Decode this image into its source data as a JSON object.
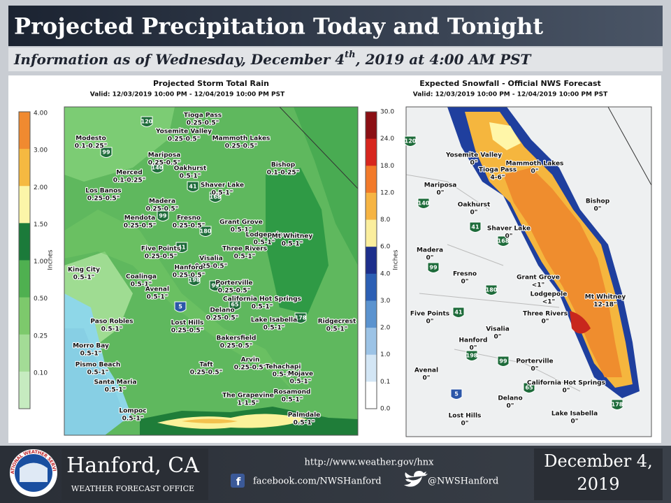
{
  "header": {
    "title": "Projected Precipitation Today and Tonight",
    "subtitle": {
      "before": "Information as of Wednesday, December 4",
      "sup": "th",
      "after": ", 2019 at 4:00 AM PST"
    }
  },
  "rain_map": {
    "title": "Projected Storm Total Rain",
    "valid": "Valid: 12/03/2019 10:00 PM - 12/04/2019 10:00 PM PST",
    "legend": {
      "label": "Inches",
      "ticks": [
        "4.00",
        "3.00",
        "2.00",
        "1.50",
        "1.00",
        "0.50",
        "0.25",
        "0.10"
      ]
    },
    "places": [
      {
        "name": "Tioga Pass",
        "amount": "0.25-0.5\""
      },
      {
        "name": "Yosemite Valley",
        "amount": "0.25-0.5\""
      },
      {
        "name": "Mammoth Lakes",
        "amount": "0.25-0.5\""
      },
      {
        "name": "Modesto",
        "amount": "0.1-0.25\""
      },
      {
        "name": "Mariposa",
        "amount": "0.25-0.5\""
      },
      {
        "name": "Bishop",
        "amount": "0.1-0.25\""
      },
      {
        "name": "Oakhurst",
        "amount": "0.5-1\""
      },
      {
        "name": "Merced",
        "amount": "0.1-0.25\""
      },
      {
        "name": "Shaver Lake",
        "amount": "0.5-1\""
      },
      {
        "name": "Los Banos",
        "amount": "0.25-0.5\""
      },
      {
        "name": "Madera",
        "amount": "0.25-0.5\""
      },
      {
        "name": "Fresno",
        "amount": "0.25-0.5\""
      },
      {
        "name": "Mendota",
        "amount": "0.25-0.5\""
      },
      {
        "name": "Grant Grove",
        "amount": "0.5-1\""
      },
      {
        "name": "Lodgepole",
        "amount": "0.5-1\""
      },
      {
        "name": "Mt Whitney",
        "amount": "0.5-1\""
      },
      {
        "name": "Three Rivers",
        "amount": "0.5-1\""
      },
      {
        "name": "Five Points",
        "amount": "0.25-0.5\""
      },
      {
        "name": "Visalia",
        "amount": "0.25-0.5\""
      },
      {
        "name": "Hanford",
        "amount": "0.25-0.5\""
      },
      {
        "name": "King City",
        "amount": "0.5-1\""
      },
      {
        "name": "Coalinga",
        "amount": "0.5-1\""
      },
      {
        "name": "Porterville",
        "amount": "0.25-0.5\""
      },
      {
        "name": "Avenal",
        "amount": "0.5-1\""
      },
      {
        "name": "California Hot Springs",
        "amount": "0.5-1\""
      },
      {
        "name": "Delano",
        "amount": "0.25-0.5\""
      },
      {
        "name": "Paso Robles",
        "amount": "0.5-1\""
      },
      {
        "name": "Lost Hills",
        "amount": "0.25-0.5\""
      },
      {
        "name": "Lake Isabella",
        "amount": "0.5-1\""
      },
      {
        "name": "Ridgecrest",
        "amount": "0.5-1\""
      },
      {
        "name": "Bakersfield",
        "amount": "0.25-0.5\""
      },
      {
        "name": "Morro Bay",
        "amount": "0.5-1\""
      },
      {
        "name": "Pismo Beach",
        "amount": "0.5-1\""
      },
      {
        "name": "Taft",
        "amount": "0.25-0.5\""
      },
      {
        "name": "Arvin",
        "amount": "0.25-0.5\""
      },
      {
        "name": "Tehachapi",
        "amount": "0.5-1\""
      },
      {
        "name": "Mojave",
        "amount": "0.5-1\""
      },
      {
        "name": "Santa Maria",
        "amount": "0.5-1\""
      },
      {
        "name": "The Grapevine",
        "amount": "1-1.5\""
      },
      {
        "name": "Rosamond",
        "amount": "0.5-1\""
      },
      {
        "name": "Lompoc",
        "amount": "0.5-1\""
      },
      {
        "name": "Palmdale",
        "amount": "0.5-1\""
      }
    ],
    "shields": [
      "120",
      "99",
      "140",
      "41",
      "168",
      "99",
      "180",
      "41",
      "198",
      "99",
      "5",
      "65",
      "178"
    ]
  },
  "snow_map": {
    "title": "Expected Snowfall - Official NWS Forecast",
    "valid": "Valid: 12/03/2019 10:00 PM - 12/04/2019 10:00 PM PST",
    "legend": {
      "label": "Inches",
      "ticks": [
        "30.0",
        "24.0",
        "18.0",
        "12.0",
        "8.0",
        "6.0",
        "4.0",
        "3.0",
        "2.0",
        "1.0",
        "0.1",
        "0.0"
      ]
    },
    "places": [
      {
        "name": "Tioga Pass",
        "amount": "4-6\""
      },
      {
        "name": "Yosemite Valley",
        "amount": "0\""
      },
      {
        "name": "Mammoth Lakes",
        "amount": "0\""
      },
      {
        "name": "Mariposa",
        "amount": "0\""
      },
      {
        "name": "Bishop",
        "amount": "0\""
      },
      {
        "name": "Oakhurst",
        "amount": "0\""
      },
      {
        "name": "Shaver Lake",
        "amount": "0\""
      },
      {
        "name": "Madera",
        "amount": "0\""
      },
      {
        "name": "Fresno",
        "amount": "0\""
      },
      {
        "name": "Grant Grove",
        "amount": "<1\""
      },
      {
        "name": "Lodgepole",
        "amount": "<1\""
      },
      {
        "name": "Mt Whitney",
        "amount": "12-18\""
      },
      {
        "name": "Three Rivers",
        "amount": "0\""
      },
      {
        "name": "Five Points",
        "amount": "0\""
      },
      {
        "name": "Visalia",
        "amount": "0\""
      },
      {
        "name": "Hanford",
        "amount": "0\""
      },
      {
        "name": "Porterville",
        "amount": "0\""
      },
      {
        "name": "Avenal",
        "amount": "0\""
      },
      {
        "name": "California Hot Springs",
        "amount": "0\""
      },
      {
        "name": "Delano",
        "amount": "0\""
      },
      {
        "name": "Lost Hills",
        "amount": "0\""
      },
      {
        "name": "Lake Isabella",
        "amount": "0\""
      }
    ],
    "shields": [
      "120",
      "140",
      "41",
      "168",
      "99",
      "180",
      "41",
      "198",
      "99",
      "5",
      "65",
      "178"
    ]
  },
  "footer": {
    "logo_text": "NATIONAL WEATHER SERVICE",
    "office": "Hanford, CA",
    "office_type": "WEATHER FORECAST OFFICE",
    "url": "http://www.weather.gov/hnx",
    "facebook": "facebook.com/NWSHanford",
    "twitter": "@NWSHanford",
    "date": "December 4, 2019"
  }
}
